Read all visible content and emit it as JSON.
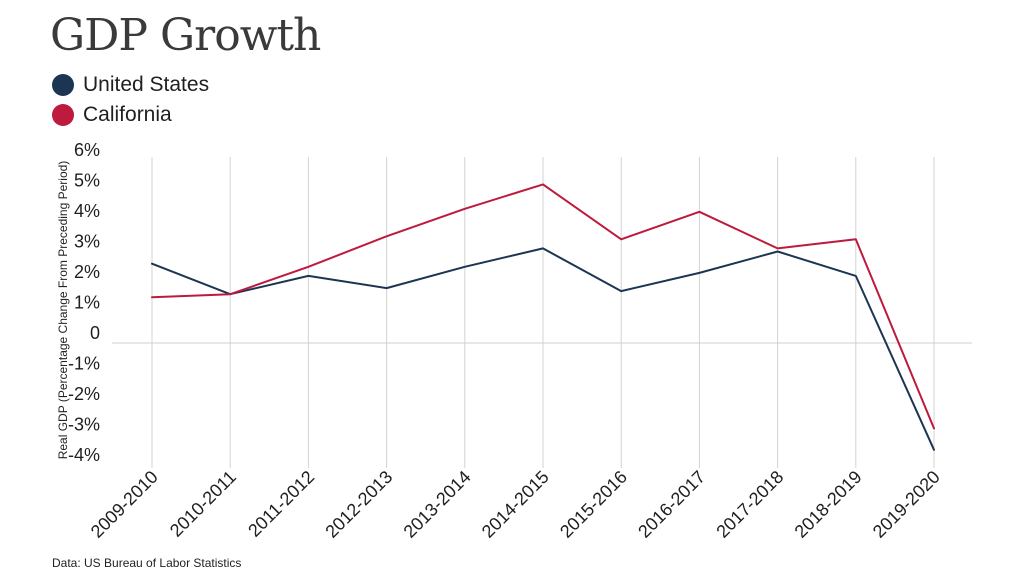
{
  "title": "GDP Growth",
  "source": "Data: US Bureau of Labor Statistics",
  "colors": {
    "us": "#1c3553",
    "ca": "#bd1a3d",
    "grid": "#d3d3d3",
    "zero": "#cfcfcf"
  },
  "chart_data": {
    "type": "line",
    "title": "GDP Growth",
    "xlabel": "",
    "ylabel": "Real GDP (Percentage Change From Preceding Period)",
    "categories": [
      "2009-2010",
      "2010-2011",
      "2011-2012",
      "2012-2013",
      "2013-2014",
      "2014-2015",
      "2015-2016",
      "2016-2017",
      "2017-2018",
      "2018-2019",
      "2019-2020"
    ],
    "yticks": [
      6,
      5,
      4,
      3,
      2,
      1,
      0,
      -1,
      -2,
      -3,
      -4
    ],
    "ytick_labels": [
      "6%",
      "5%",
      "4%",
      "3%",
      "2%",
      "1%",
      "0",
      "-1%",
      "-2%",
      "-3%",
      "-4%"
    ],
    "ylim": [
      -4,
      6
    ],
    "grid": "vertical",
    "legend_position": "top-left",
    "series": [
      {
        "name": "United States",
        "color": "#1c3553",
        "values": [
          2.6,
          1.6,
          2.2,
          1.8,
          2.5,
          3.1,
          1.7,
          2.3,
          3.0,
          2.2,
          -3.5
        ]
      },
      {
        "name": "California",
        "color": "#bd1a3d",
        "values": [
          1.5,
          1.6,
          2.5,
          3.5,
          4.4,
          5.2,
          3.4,
          4.3,
          3.1,
          3.4,
          -2.8
        ]
      }
    ]
  }
}
